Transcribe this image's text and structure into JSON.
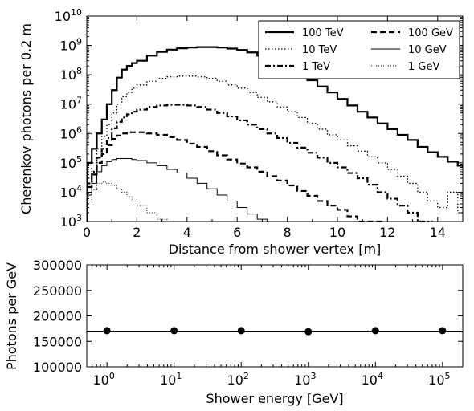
{
  "chart_data": [
    {
      "type": "line",
      "step": true,
      "xlabel": "Distance from shower vertex [m]",
      "ylabel": "Cherenkov photons per 0.2 m",
      "xlim": [
        0,
        15
      ],
      "ylim": [
        1000,
        10000000000
      ],
      "yscale": "log",
      "xticks": [
        "0",
        "2",
        "4",
        "6",
        "8",
        "10",
        "12",
        "14"
      ],
      "yticks": [
        {
          "base": "10",
          "exp": "3"
        },
        {
          "base": "10",
          "exp": "4"
        },
        {
          "base": "10",
          "exp": "5"
        },
        {
          "base": "10",
          "exp": "6"
        },
        {
          "base": "10",
          "exp": "7"
        },
        {
          "base": "10",
          "exp": "8"
        },
        {
          "base": "10",
          "exp": "9"
        },
        {
          "base": "10",
          "exp": "10"
        }
      ],
      "legend_position": "top-right",
      "series": [
        {
          "name": "100 TeV",
          "style": "solid-thick",
          "x": [
            0,
            0.2,
            0.4,
            0.6,
            0.8,
            1.0,
            1.2,
            1.4,
            1.6,
            1.8,
            2.0,
            2.4,
            2.8,
            3.2,
            3.6,
            4.0,
            4.4,
            4.8,
            5.2,
            5.6,
            6.0,
            6.4,
            6.8,
            7.2,
            7.6,
            8.0,
            8.4,
            8.8,
            9.2,
            9.6,
            10.0,
            10.4,
            10.8,
            11.2,
            11.6,
            12.0,
            12.4,
            12.8,
            13.2,
            13.6,
            14.0,
            14.4,
            14.8,
            15.0
          ],
          "y": [
            100000,
            300000,
            1000000,
            3000000,
            10000000,
            30000000,
            80000000,
            150000000,
            200000000,
            250000000,
            300000000,
            450000000,
            600000000,
            720000000,
            800000000,
            850000000,
            880000000,
            880000000,
            850000000,
            780000000,
            700000000,
            580000000,
            450000000,
            320000000,
            230000000,
            160000000,
            100000000,
            65000000,
            40000000,
            25000000,
            15000000,
            9000000,
            5500000,
            3500000,
            2200000,
            1400000,
            900000,
            600000,
            350000,
            230000,
            160000,
            110000,
            80000,
            70000
          ]
        },
        {
          "name": "10 TeV",
          "style": "dotted",
          "x": [
            0,
            0.2,
            0.4,
            0.6,
            0.8,
            1.0,
            1.2,
            1.4,
            1.6,
            1.8,
            2.0,
            2.4,
            2.8,
            3.2,
            3.6,
            4.0,
            4.4,
            4.8,
            5.2,
            5.6,
            6.0,
            6.4,
            6.8,
            7.2,
            7.6,
            8.0,
            8.4,
            8.8,
            9.2,
            9.6,
            10.0,
            10.4,
            10.8,
            11.2,
            11.6,
            12.0,
            12.4,
            12.8,
            13.2,
            13.6,
            14.0,
            14.4,
            14.8
          ],
          "y": [
            30000,
            100000,
            300000,
            800000,
            2000000,
            5000000,
            10000000,
            18000000,
            25000000,
            35000000,
            45000000,
            60000000,
            75000000,
            85000000,
            90000000,
            90000000,
            85000000,
            75000000,
            60000000,
            45000000,
            35000000,
            25000000,
            17000000,
            12000000,
            8000000,
            5500000,
            3500000,
            2200000,
            1400000,
            900000,
            600000,
            380000,
            250000,
            160000,
            100000,
            60000,
            35000,
            20000,
            10000,
            5000,
            3000,
            10000,
            2000
          ]
        },
        {
          "name": "1 TeV",
          "style": "dash-dot-thick",
          "x": [
            0,
            0.2,
            0.4,
            0.6,
            0.8,
            1.0,
            1.2,
            1.4,
            1.6,
            1.8,
            2.0,
            2.4,
            2.8,
            3.2,
            3.6,
            4.0,
            4.4,
            4.8,
            5.2,
            5.6,
            6.0,
            6.4,
            6.8,
            7.2,
            7.6,
            8.0,
            8.4,
            8.8,
            9.2,
            9.6,
            10.0,
            10.4,
            10.8,
            11.2,
            11.6,
            12.0,
            12.4,
            12.8,
            13.2,
            13.6
          ],
          "y": [
            20000,
            50000,
            150000,
            300000,
            700000,
            1500000,
            2500000,
            3500000,
            4500000,
            5500000,
            6500000,
            8000000,
            9000000,
            9500000,
            9500000,
            9000000,
            8000000,
            6500000,
            5000000,
            3800000,
            2800000,
            2000000,
            1400000,
            1000000,
            700000,
            480000,
            330000,
            220000,
            150000,
            100000,
            70000,
            45000,
            30000,
            18000,
            10000,
            6000,
            3500,
            2000,
            1000,
            1000
          ]
        },
        {
          "name": "100 GeV",
          "style": "dashed-thick",
          "x": [
            0,
            0.2,
            0.4,
            0.6,
            0.8,
            1.0,
            1.2,
            1.4,
            1.6,
            1.8,
            2.0,
            2.4,
            2.8,
            3.2,
            3.6,
            4.0,
            4.4,
            4.8,
            5.2,
            5.6,
            6.0,
            6.4,
            6.8,
            7.2,
            7.6,
            8.0,
            8.4,
            8.8,
            9.2,
            9.6,
            10.0,
            10.4,
            10.8,
            11.2,
            11.6
          ],
          "y": [
            15000,
            40000,
            100000,
            200000,
            400000,
            650000,
            850000,
            1000000,
            1100000,
            1100000,
            1100000,
            1000000,
            900000,
            750000,
            600000,
            450000,
            350000,
            250000,
            180000,
            130000,
            95000,
            70000,
            50000,
            35000,
            25000,
            17000,
            11000,
            7500,
            5000,
            3500,
            2500,
            1500,
            1000,
            1000,
            1000
          ]
        },
        {
          "name": "10 GeV",
          "style": "solid-thin",
          "x": [
            0,
            0.2,
            0.4,
            0.6,
            0.8,
            1.0,
            1.2,
            1.4,
            1.6,
            1.8,
            2.0,
            2.4,
            2.8,
            3.2,
            3.6,
            4.0,
            4.4,
            4.8,
            5.2,
            5.6,
            6.0,
            6.4,
            6.8,
            7.2
          ],
          "y": [
            8000,
            20000,
            50000,
            80000,
            110000,
            130000,
            140000,
            140000,
            140000,
            130000,
            120000,
            100000,
            80000,
            60000,
            45000,
            30000,
            20000,
            13000,
            8000,
            5000,
            3000,
            1800,
            1200,
            1000
          ]
        },
        {
          "name": "1 GeV",
          "style": "dotted-thin",
          "x": [
            0,
            0.2,
            0.4,
            0.6,
            0.8,
            1.0,
            1.2,
            1.4,
            1.6,
            1.8,
            2.0,
            2.4,
            2.8,
            3.2
          ],
          "y": [
            5000,
            12000,
            20000,
            22000,
            20000,
            17000,
            13000,
            10000,
            7000,
            5000,
            3500,
            2000,
            1200,
            1000
          ]
        }
      ]
    },
    {
      "type": "scatter",
      "xlabel": "Shower energy [GeV]",
      "ylabel": "Photons per GeV",
      "xscale": "log",
      "xlim": [
        0.5,
        200000
      ],
      "ylim": [
        100000,
        300000
      ],
      "yticks": [
        "100000",
        "150000",
        "200000",
        "250000",
        "300000"
      ],
      "xticks": [
        {
          "base": "10",
          "exp": "0"
        },
        {
          "base": "10",
          "exp": "1"
        },
        {
          "base": "10",
          "exp": "2"
        },
        {
          "base": "10",
          "exp": "3"
        },
        {
          "base": "10",
          "exp": "4"
        },
        {
          "base": "10",
          "exp": "5"
        }
      ],
      "x": [
        1,
        10,
        100,
        1000,
        10000,
        100000
      ],
      "y": [
        171000,
        171000,
        171000,
        169000,
        171000,
        171000
      ],
      "reference_line": 170000
    }
  ]
}
